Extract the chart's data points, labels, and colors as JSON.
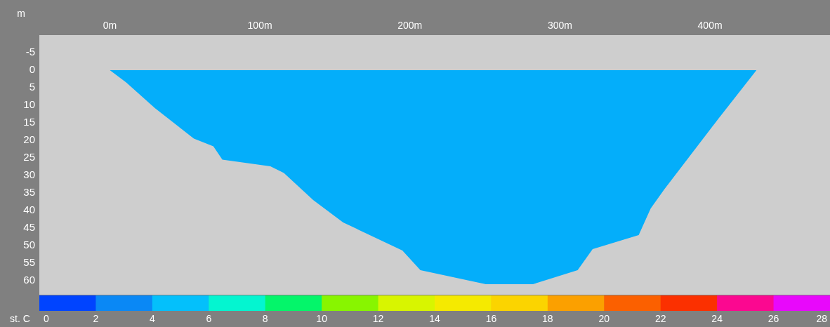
{
  "chart_data": {
    "type": "area",
    "ylabel": "m",
    "clabel": "st. C",
    "x": [
      0,
      10.9,
      30,
      56,
      69,
      75,
      107,
      116,
      135.5,
      155.5,
      195,
      207,
      250.6,
      282,
      311.8,
      321.8,
      352.5,
      360.5,
      369.5,
      405.5,
      431
    ],
    "series": [
      {
        "color": "#04aefa",
        "values": [
          0,
          3.5,
          10.8,
          19.5,
          21.7,
          25.5,
          27.4,
          29.3,
          37,
          43.4,
          51.4,
          57,
          61,
          61,
          57,
          51,
          47,
          39.4,
          34,
          13.9,
          0
        ]
      }
    ],
    "xlim": [
      -47,
      480
    ],
    "xticks": [
      {
        "value": 0,
        "label": "0m"
      },
      {
        "value": 100,
        "label": "100m"
      },
      {
        "value": 200,
        "label": "200m"
      },
      {
        "value": 300,
        "label": "300m"
      },
      {
        "value": 400,
        "label": "400m"
      }
    ],
    "ylim": [
      64,
      -10
    ],
    "yticks": [
      -5,
      0,
      5,
      10,
      15,
      20,
      25,
      30,
      35,
      40,
      45,
      50,
      55,
      60
    ],
    "clim": [
      0,
      28
    ],
    "cticks": [
      0,
      2,
      4,
      6,
      8,
      10,
      12,
      14,
      16,
      18,
      20,
      22,
      24,
      26,
      28
    ],
    "grid": false,
    "legend": false
  }
}
